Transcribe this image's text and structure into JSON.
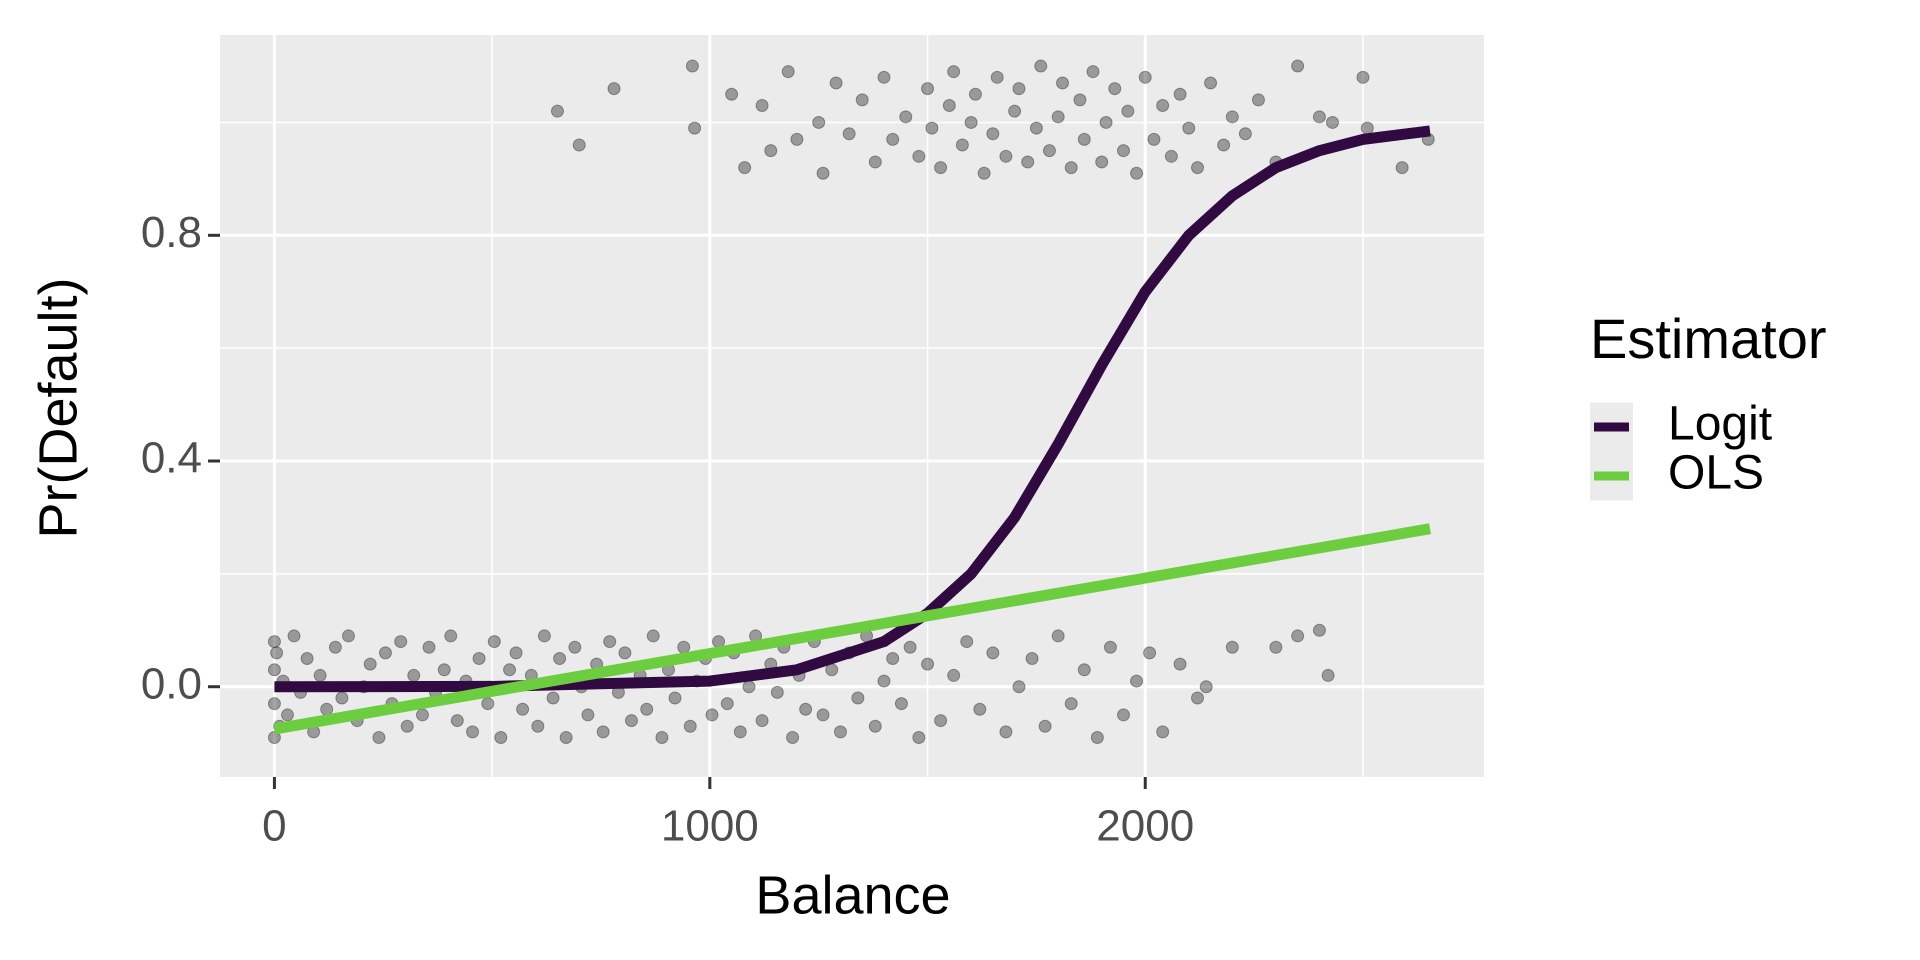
{
  "chart_data": {
    "type": "scatter",
    "xlabel": "Balance",
    "ylabel": "Pr(Default)",
    "legend_title": "Estimator",
    "xlim": [
      -125,
      2778
    ],
    "ylim": [
      -0.16,
      1.155
    ],
    "xticks": [
      0,
      1000,
      2000
    ],
    "yticks": [
      {
        "value": 0,
        "label": "0.0"
      },
      {
        "value": 0.4,
        "label": "0.4"
      },
      {
        "value": 0.8,
        "label": "0.8"
      }
    ],
    "x_minor_grid": [
      500,
      1500,
      2500
    ],
    "y_minor_grid": [
      0.2,
      0.6,
      1.0
    ],
    "grid": true,
    "point_color": "#000000",
    "point_opacity": 0.35,
    "scatter": [
      {
        "x": [
          650,
          700,
          780,
          960,
          965,
          1050,
          1080,
          1120,
          1140,
          1180,
          1200,
          1250,
          1260,
          1290,
          1320,
          1350,
          1380,
          1400,
          1420,
          1450,
          1480,
          1500,
          1510,
          1530,
          1550,
          1560,
          1580,
          1600,
          1610,
          1630,
          1650,
          1660,
          1680,
          1700,
          1710,
          1730,
          1750,
          1760,
          1780,
          1800,
          1810,
          1830,
          1850,
          1860,
          1880,
          1900,
          1910,
          1930,
          1950,
          1960,
          1980,
          2000,
          2020,
          2040,
          2060,
          2080,
          2100,
          2120,
          2150,
          2180,
          2200,
          2230,
          2260,
          2300,
          2350,
          2400,
          2430,
          2500,
          2510,
          2590,
          2650
        ],
        "values": [
          1.02,
          0.96,
          1.06,
          1.1,
          0.99,
          1.05,
          0.92,
          1.03,
          0.95,
          1.09,
          0.97,
          1.0,
          0.91,
          1.07,
          0.98,
          1.04,
          0.93,
          1.08,
          0.97,
          1.01,
          0.94,
          1.06,
          0.99,
          0.92,
          1.03,
          1.09,
          0.96,
          1.0,
          1.05,
          0.91,
          0.98,
          1.08,
          0.94,
          1.02,
          1.06,
          0.93,
          0.99,
          1.1,
          0.95,
          1.01,
          1.07,
          0.92,
          1.04,
          0.97,
          1.09,
          0.93,
          1.0,
          1.06,
          0.95,
          1.02,
          0.91,
          1.08,
          0.97,
          1.03,
          0.94,
          1.05,
          0.99,
          0.92,
          1.07,
          0.96,
          1.01,
          0.98,
          1.04,
          0.93,
          1.1,
          1.01,
          1.0,
          1.08,
          0.99,
          0.92,
          0.97
        ]
      },
      {
        "x": [
          0,
          0,
          0,
          0,
          5,
          12,
          20,
          30,
          45,
          60,
          75,
          90,
          105,
          120,
          140,
          155,
          170,
          190,
          205,
          220,
          240,
          255,
          270,
          290,
          305,
          320,
          340,
          355,
          370,
          390,
          405,
          420,
          440,
          455,
          470,
          490,
          505,
          520,
          540,
          555,
          570,
          590,
          605,
          620,
          640,
          655,
          670,
          690,
          705,
          720,
          740,
          755,
          770,
          790,
          805,
          820,
          840,
          855,
          870,
          890,
          905,
          920,
          940,
          955,
          970,
          990,
          1005,
          1020,
          1040,
          1055,
          1070,
          1090,
          1105,
          1120,
          1140,
          1155,
          1170,
          1190,
          1205,
          1220,
          1240,
          1260,
          1280,
          1300,
          1320,
          1340,
          1360,
          1380,
          1400,
          1420,
          1440,
          1460,
          1480,
          1500,
          1530,
          1560,
          1590,
          1620,
          1650,
          1680,
          1710,
          1740,
          1770,
          1800,
          1830,
          1860,
          1890,
          1920,
          1950,
          1980,
          2010,
          2040,
          2080,
          2120,
          2140,
          2200,
          2300,
          2350,
          2400,
          2420
        ],
        "values": [
          -0.09,
          0.08,
          -0.03,
          0.03,
          0.06,
          -0.07,
          0.01,
          -0.05,
          0.09,
          -0.01,
          0.05,
          -0.08,
          0.02,
          -0.04,
          0.07,
          -0.02,
          0.09,
          -0.06,
          0.0,
          0.04,
          -0.09,
          0.06,
          -0.03,
          0.08,
          -0.07,
          0.02,
          -0.05,
          0.07,
          -0.01,
          0.03,
          0.09,
          -0.06,
          0.01,
          -0.08,
          0.05,
          -0.03,
          0.08,
          -0.09,
          0.03,
          0.06,
          -0.04,
          0.02,
          -0.07,
          0.09,
          -0.02,
          0.05,
          -0.09,
          0.07,
          0.0,
          -0.05,
          0.04,
          -0.08,
          0.08,
          -0.01,
          0.06,
          -0.06,
          0.02,
          -0.04,
          0.09,
          -0.09,
          0.03,
          -0.02,
          0.07,
          -0.07,
          0.01,
          0.05,
          -0.05,
          0.08,
          -0.03,
          0.06,
          -0.08,
          0.0,
          0.09,
          -0.06,
          0.04,
          -0.01,
          0.07,
          -0.09,
          0.02,
          -0.04,
          0.08,
          -0.05,
          0.03,
          -0.08,
          0.06,
          -0.02,
          0.09,
          -0.07,
          0.01,
          0.05,
          -0.03,
          0.07,
          -0.09,
          0.04,
          -0.06,
          0.02,
          0.08,
          -0.04,
          0.06,
          -0.08,
          0.0,
          0.05,
          -0.07,
          0.09,
          -0.03,
          0.03,
          -0.09,
          0.07,
          -0.05,
          0.01,
          0.06,
          -0.08,
          0.04,
          -0.02,
          0.0,
          0.07,
          0.07,
          0.09,
          0.1,
          0.02
        ]
      }
    ],
    "lines": [
      {
        "name": "Logit",
        "color": "#300a40",
        "x": [
          0,
          500,
          1000,
          1200,
          1400,
          1500,
          1600,
          1700,
          1800,
          1900,
          2000,
          2100,
          2200,
          2300,
          2400,
          2500,
          2654
        ],
        "values": [
          0,
          0.0005,
          0.01,
          0.03,
          0.08,
          0.13,
          0.2,
          0.3,
          0.43,
          0.57,
          0.7,
          0.8,
          0.87,
          0.92,
          0.95,
          0.97,
          0.985
        ]
      },
      {
        "name": "OLS",
        "color": "#6ccd3f",
        "x": [
          0,
          2654
        ],
        "values": [
          -0.075,
          0.28
        ]
      }
    ]
  }
}
